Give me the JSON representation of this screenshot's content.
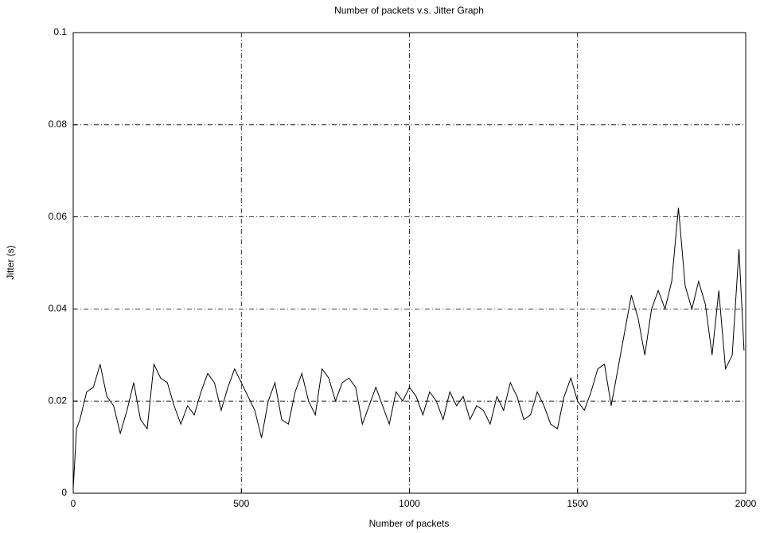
{
  "chart_data": {
    "type": "line",
    "title": "Number of packets v.s. Jitter Graph",
    "x_label": "Number of packets",
    "y_label": "Jitter (s)",
    "x": [
      0,
      10,
      20,
      40,
      60,
      80,
      100,
      120,
      140,
      160,
      180,
      200,
      220,
      240,
      260,
      280,
      300,
      320,
      340,
      360,
      380,
      400,
      420,
      440,
      460,
      480,
      500,
      520,
      540,
      560,
      580,
      600,
      620,
      640,
      660,
      680,
      700,
      720,
      740,
      760,
      780,
      800,
      820,
      840,
      860,
      880,
      900,
      920,
      940,
      960,
      980,
      1000,
      1020,
      1040,
      1060,
      1080,
      1100,
      1120,
      1140,
      1160,
      1180,
      1200,
      1220,
      1240,
      1260,
      1280,
      1300,
      1320,
      1340,
      1360,
      1380,
      1400,
      1420,
      1440,
      1460,
      1480,
      1500,
      1520,
      1540,
      1560,
      1580,
      1600,
      1620,
      1640,
      1660,
      1680,
      1700,
      1720,
      1740,
      1760,
      1780,
      1800,
      1820,
      1840,
      1860,
      1880,
      1900,
      1920,
      1940,
      1960,
      1980,
      1995
    ],
    "series": [
      {
        "name": "Jitter",
        "color": "#000000",
        "values": [
          0.001,
          0.014,
          0.016,
          0.022,
          0.023,
          0.028,
          0.021,
          0.019,
          0.013,
          0.018,
          0.024,
          0.016,
          0.014,
          0.028,
          0.025,
          0.024,
          0.019,
          0.015,
          0.019,
          0.017,
          0.022,
          0.026,
          0.024,
          0.018,
          0.023,
          0.027,
          0.024,
          0.021,
          0.018,
          0.012,
          0.02,
          0.024,
          0.016,
          0.015,
          0.022,
          0.026,
          0.02,
          0.017,
          0.027,
          0.025,
          0.02,
          0.024,
          0.025,
          0.023,
          0.015,
          0.019,
          0.023,
          0.019,
          0.015,
          0.022,
          0.02,
          0.023,
          0.021,
          0.017,
          0.022,
          0.02,
          0.016,
          0.022,
          0.019,
          0.021,
          0.016,
          0.019,
          0.018,
          0.015,
          0.021,
          0.018,
          0.024,
          0.021,
          0.016,
          0.017,
          0.022,
          0.019,
          0.015,
          0.014,
          0.021,
          0.025,
          0.02,
          0.018,
          0.022,
          0.027,
          0.028,
          0.019,
          0.027,
          0.035,
          0.043,
          0.038,
          0.03,
          0.04,
          0.044,
          0.04,
          0.046,
          0.062,
          0.045,
          0.04,
          0.046,
          0.041,
          0.03,
          0.044,
          0.027,
          0.03,
          0.053,
          0.031
        ]
      }
    ],
    "xlim": [
      0,
      2000
    ],
    "xticks": [
      0,
      500,
      1000,
      1500,
      2000
    ],
    "ylim": [
      0,
      0.1
    ],
    "yticks": [
      0,
      0.02,
      0.04,
      0.06,
      0.08,
      0.1
    ],
    "grid": true
  }
}
